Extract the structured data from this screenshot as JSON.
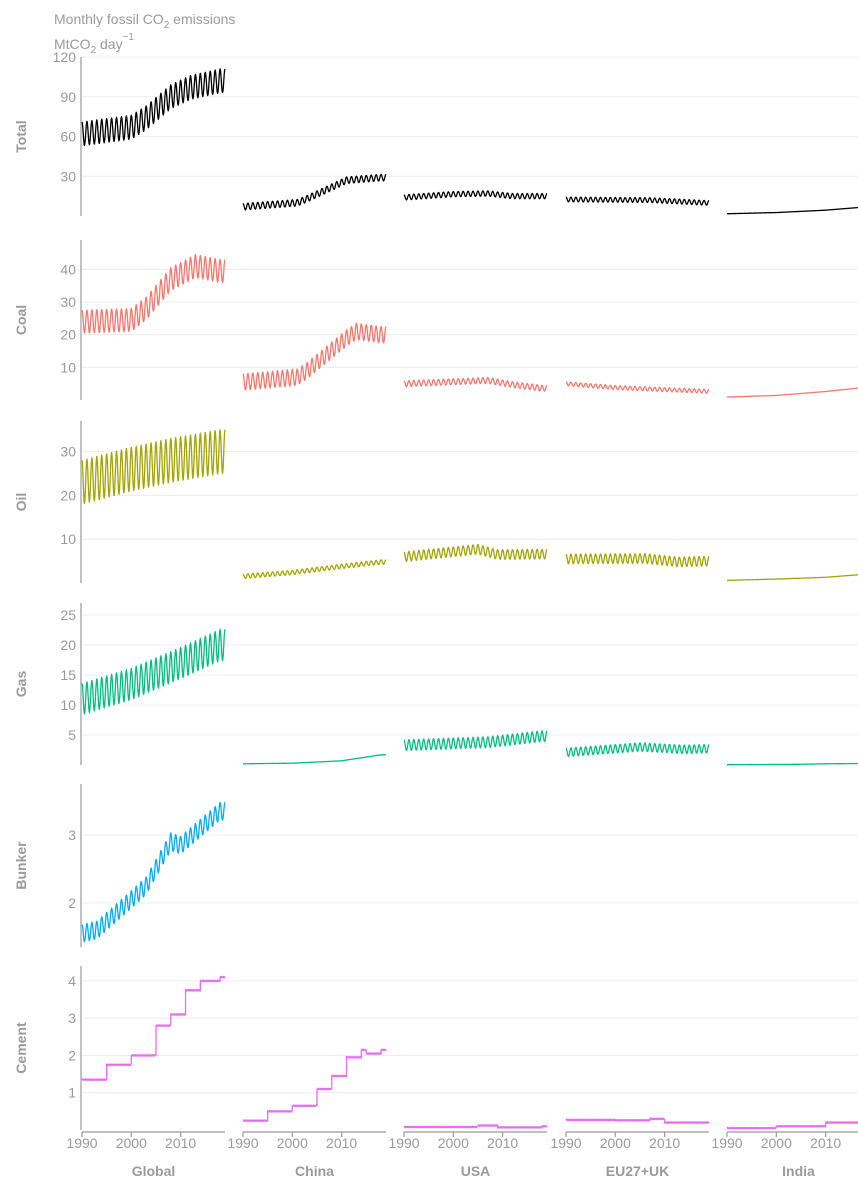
{
  "chart_data": {
    "type": "line",
    "title": "Monthly fossil CO",
    "title_sub": "2",
    "title_suffix": " emissions",
    "ylabel": "MtCO",
    "ylabel_sub": "2",
    "ylabel_suffix": " day",
    "ylabel_sup": "−1",
    "x_range": [
      1990,
      2019
    ],
    "x_ticks": [
      1990,
      2000,
      2010
    ],
    "grid": "horizontal",
    "legend": "none",
    "columns": [
      "Global",
      "China",
      "USA",
      "EU27+UK",
      "India"
    ],
    "rows": [
      {
        "name": "Total",
        "color": "#000000",
        "ylim": [
          0,
          120
        ],
        "ticks": [
          30,
          60,
          90,
          120
        ],
        "series": {
          "Global": {
            "kind": "seasonal",
            "points": [
              [
                1990,
                62
              ],
              [
                2000,
                67
              ],
              [
                2003,
                74
              ],
              [
                2008,
                90
              ],
              [
                2012,
                97
              ],
              [
                2018,
                102
              ]
            ],
            "amp": 9
          },
          "China": {
            "kind": "seasonal",
            "points": [
              [
                1990,
                7
              ],
              [
                2001,
                10
              ],
              [
                2003,
                13
              ],
              [
                2011,
                27
              ],
              [
                2018,
                29
              ]
            ],
            "amp": 2.5
          },
          "USA": {
            "kind": "seasonal",
            "points": [
              [
                1990,
                14
              ],
              [
                2000,
                16.5
              ],
              [
                2007,
                17
              ],
              [
                2012,
                15
              ],
              [
                2018,
                15
              ]
            ],
            "amp": 2
          },
          "EU27+UK": {
            "kind": "seasonal",
            "points": [
              [
                1990,
                12.5
              ],
              [
                2007,
                12
              ],
              [
                2018,
                10
              ]
            ],
            "amp": 1.8
          },
          "India": {
            "kind": "smooth",
            "points": [
              [
                1990,
                1.7
              ],
              [
                2000,
                2.6
              ],
              [
                2010,
                4.4
              ],
              [
                2018,
                6.8
              ]
            ]
          }
        }
      },
      {
        "name": "Coal",
        "color": "#f8766d",
        "ylim": [
          0,
          49
        ],
        "ticks": [
          10,
          20,
          30,
          40
        ],
        "series": {
          "Global": {
            "kind": "seasonal",
            "points": [
              [
                1990,
                24
              ],
              [
                2000,
                24.5
              ],
              [
                2003,
                28
              ],
              [
                2008,
                37
              ],
              [
                2013,
                41
              ],
              [
                2018,
                39.5
              ]
            ],
            "amp": 3.5
          },
          "China": {
            "kind": "seasonal",
            "points": [
              [
                1990,
                5.5
              ],
              [
                2001,
                7
              ],
              [
                2003,
                9
              ],
              [
                2011,
                19
              ],
              [
                2013,
                21
              ],
              [
                2018,
                20
              ]
            ],
            "amp": 2.5
          },
          "USA": {
            "kind": "seasonal",
            "points": [
              [
                1990,
                5
              ],
              [
                2007,
                6
              ],
              [
                2012,
                4.7
              ],
              [
                2018,
                3.6
              ]
            ],
            "amp": 0.9
          },
          "EU27+UK": {
            "kind": "seasonal",
            "points": [
              [
                1990,
                5
              ],
              [
                2000,
                3.8
              ],
              [
                2018,
                2.7
              ]
            ],
            "amp": 0.6
          },
          "India": {
            "kind": "smooth",
            "points": [
              [
                1990,
                0.9
              ],
              [
                2000,
                1.4
              ],
              [
                2010,
                2.6
              ],
              [
                2018,
                3.9
              ]
            ]
          }
        }
      },
      {
        "name": "Oil",
        "color": "#a3a500",
        "ylim": [
          0,
          37
        ],
        "ticks": [
          10,
          20,
          30
        ],
        "series": {
          "Global": {
            "kind": "seasonal",
            "points": [
              [
                1990,
                23
              ],
              [
                2000,
                26
              ],
              [
                2008,
                28
              ],
              [
                2018,
                30
              ]
            ],
            "amp": 5
          },
          "China": {
            "kind": "seasonal",
            "points": [
              [
                1990,
                1.5
              ],
              [
                2000,
                2.4
              ],
              [
                2010,
                3.8
              ],
              [
                2018,
                4.8
              ]
            ],
            "amp": 0.5
          },
          "USA": {
            "kind": "seasonal",
            "points": [
              [
                1990,
                6
              ],
              [
                2005,
                7.7
              ],
              [
                2009,
                6.5
              ],
              [
                2018,
                6.6
              ]
            ],
            "amp": 1.1
          },
          "EU27+UK": {
            "kind": "seasonal",
            "points": [
              [
                1990,
                5.5
              ],
              [
                2006,
                5.6
              ],
              [
                2013,
                4.8
              ],
              [
                2018,
                5
              ]
            ],
            "amp": 1.1
          },
          "India": {
            "kind": "smooth",
            "points": [
              [
                1990,
                0.6
              ],
              [
                2000,
                0.9
              ],
              [
                2010,
                1.3
              ],
              [
                2018,
                2
              ]
            ]
          }
        }
      },
      {
        "name": "Gas",
        "color": "#00bf7d",
        "ylim": [
          0,
          27
        ],
        "ticks": [
          5,
          10,
          15,
          20,
          25
        ],
        "series": {
          "Global": {
            "kind": "seasonal",
            "points": [
              [
                1990,
                11
              ],
              [
                2000,
                13.5
              ],
              [
                2010,
                17
              ],
              [
                2018,
                20
              ]
            ],
            "amp": 2.6
          },
          "China": {
            "kind": "smooth",
            "points": [
              [
                1990,
                0.2
              ],
              [
                2000,
                0.3
              ],
              [
                2010,
                0.7
              ],
              [
                2018,
                1.7
              ]
            ]
          },
          "USA": {
            "kind": "seasonal",
            "points": [
              [
                1990,
                3.3
              ],
              [
                2007,
                3.8
              ],
              [
                2018,
                4.8
              ]
            ],
            "amp": 0.9
          },
          "EU27+UK": {
            "kind": "seasonal",
            "points": [
              [
                1990,
                2.1
              ],
              [
                2005,
                3
              ],
              [
                2014,
                2.6
              ],
              [
                2018,
                2.7
              ]
            ],
            "amp": 0.7
          },
          "India": {
            "kind": "smooth",
            "points": [
              [
                1990,
                0.05
              ],
              [
                2005,
                0.12
              ],
              [
                2010,
                0.2
              ],
              [
                2018,
                0.25
              ]
            ]
          }
        }
      },
      {
        "name": "Bunker",
        "color": "#00a9ff",
        "ylim": [
          1.35,
          3.75
        ],
        "ticks": [
          2,
          3
        ],
        "series": {
          "Global": {
            "kind": "seasonal",
            "points": [
              [
                1990,
                1.55
              ],
              [
                1993,
                1.6
              ],
              [
                2000,
                2.05
              ],
              [
                2003,
                2.25
              ],
              [
                2008,
                2.9
              ],
              [
                2010,
                2.85
              ],
              [
                2018,
                3.35
              ]
            ],
            "amp": 0.13
          }
        }
      },
      {
        "name": "Cement",
        "color": "#e76bf3",
        "ylim": [
          0,
          4.4
        ],
        "ticks": [
          1,
          2,
          3,
          4
        ],
        "series": {
          "Global": {
            "kind": "step",
            "points": [
              [
                1990,
                1.35
              ],
              [
                1995,
                1.75
              ],
              [
                2000,
                2.0
              ],
              [
                2005,
                2.8
              ],
              [
                2008,
                3.1
              ],
              [
                2011,
                3.75
              ],
              [
                2014,
                4.0
              ],
              [
                2016,
                4.0
              ],
              [
                2018,
                4.1
              ]
            ]
          },
          "China": {
            "kind": "step",
            "points": [
              [
                1990,
                0.25
              ],
              [
                1995,
                0.5
              ],
              [
                2000,
                0.65
              ],
              [
                2005,
                1.1
              ],
              [
                2008,
                1.45
              ],
              [
                2011,
                1.95
              ],
              [
                2014,
                2.15
              ],
              [
                2015,
                2.05
              ],
              [
                2018,
                2.15
              ]
            ]
          },
          "USA": {
            "kind": "step",
            "points": [
              [
                1990,
                0.08
              ],
              [
                2005,
                0.12
              ],
              [
                2009,
                0.07
              ],
              [
                2018,
                0.1
              ]
            ]
          },
          "EU27+UK": {
            "kind": "step",
            "points": [
              [
                1990,
                0.27
              ],
              [
                2000,
                0.26
              ],
              [
                2007,
                0.3
              ],
              [
                2010,
                0.2
              ],
              [
                2018,
                0.2
              ]
            ]
          },
          "India": {
            "kind": "step",
            "points": [
              [
                1990,
                0.05
              ],
              [
                2000,
                0.1
              ],
              [
                2010,
                0.2
              ],
              [
                2018,
                0.32
              ]
            ]
          }
        }
      }
    ]
  }
}
